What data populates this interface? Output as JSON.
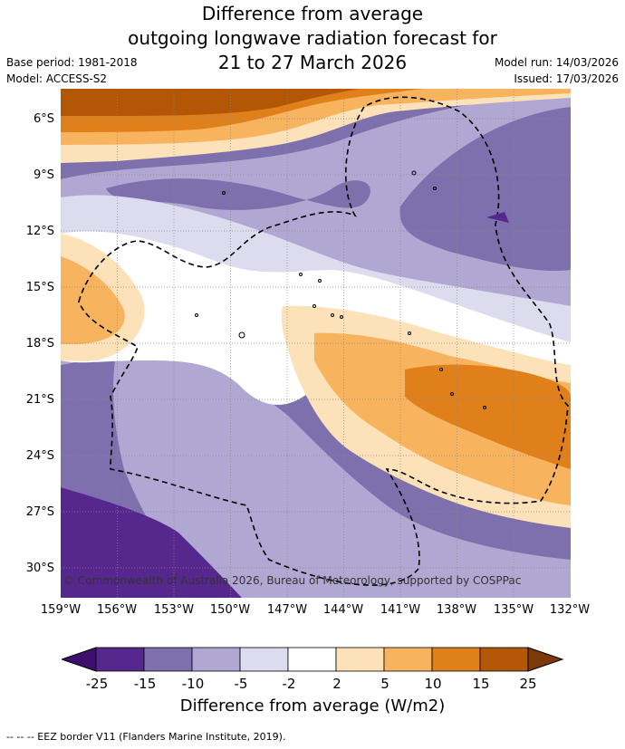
{
  "title": {
    "line1": "Difference from average",
    "line2": "outgoing longwave radiation forecast for",
    "line3": "21 to 27 March 2026"
  },
  "meta_left": {
    "base_period": "Base period: 1981-2018",
    "model": "Model: ACCESS-S2"
  },
  "meta_right": {
    "model_run": "Model run: 14/03/2026",
    "issued": "Issued: 17/03/2026"
  },
  "map": {
    "latitude_labels": [
      "6°S",
      "9°S",
      "12°S",
      "15°S",
      "18°S",
      "21°S",
      "24°S",
      "27°S",
      "30°S"
    ],
    "longitude_labels": [
      "159°W",
      "156°W",
      "153°W",
      "150°W",
      "147°W",
      "144°W",
      "141°W",
      "138°W",
      "135°W",
      "132°W"
    ],
    "credit": "© Commonwealth of Australia 2026, Bureau of Meteorology, supported by COSPPac",
    "border_icon": "eez-border-dashed-line",
    "island_icon": "island-outline"
  },
  "colorbar": {
    "ticks": [
      "-25",
      "-15",
      "-10",
      "-5",
      "-2",
      "2",
      "5",
      "10",
      "15",
      "25"
    ],
    "colors": [
      "#3f0f6e",
      "#56278c",
      "#7e70ad",
      "#b0a8d3",
      "#dddcee",
      "#ffffff",
      "#fde1b8",
      "#f8b35f",
      "#e0801b",
      "#b35706",
      "#7b3a08"
    ],
    "label": "Difference from average (W/m2)"
  },
  "footnote": "--  --  -- EEZ border V11 (Flanders Marine Institute, 2019)."
}
